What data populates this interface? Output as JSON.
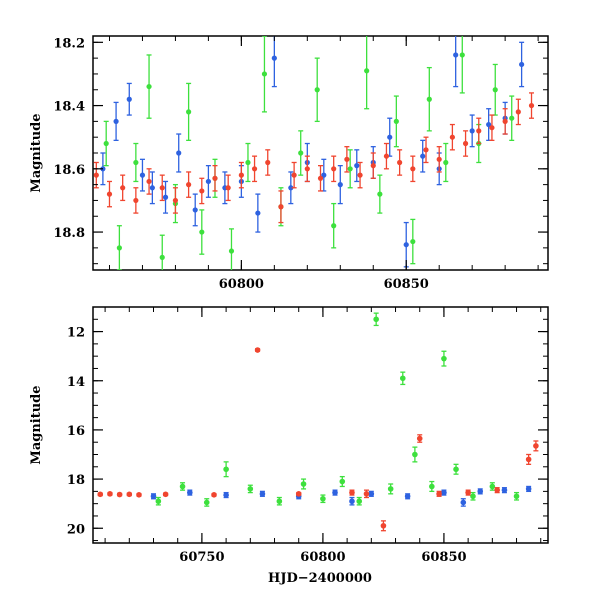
{
  "chart_data": [
    {
      "type": "scatter",
      "title": "",
      "xlabel": "",
      "ylabel": "Magnitude",
      "xlim": [
        60755,
        60893
      ],
      "ylim": [
        18.92,
        18.18
      ],
      "y_inverted": true,
      "x_ticks": [
        60800,
        60850
      ],
      "y_ticks": [
        18.2,
        18.4,
        18.6,
        18.8
      ],
      "grid": false,
      "legend": "none",
      "series": [
        {
          "color": "#2e62e0",
          "x": [
            60758,
            60762,
            60766,
            60770,
            60773,
            60777,
            60781,
            60786,
            60790,
            60795,
            60800,
            60805,
            60810,
            60815,
            60820,
            60825,
            60830,
            60835,
            60840,
            60845,
            60850,
            60855,
            60860,
            60865,
            60870,
            60875,
            60880,
            60885
          ],
          "y": [
            18.6,
            18.45,
            18.38,
            18.62,
            18.66,
            18.69,
            18.55,
            18.73,
            18.64,
            18.66,
            18.64,
            18.74,
            18.25,
            18.66,
            18.58,
            18.62,
            18.65,
            18.59,
            18.58,
            18.5,
            18.84,
            18.56,
            18.6,
            18.24,
            18.48,
            18.46,
            18.44,
            18.27
          ],
          "errors": [
            0.05,
            0.06,
            0.05,
            0.05,
            0.05,
            0.05,
            0.06,
            0.05,
            0.05,
            0.05,
            0.05,
            0.06,
            0.09,
            0.05,
            0.06,
            0.05,
            0.06,
            0.05,
            0.05,
            0.06,
            0.07,
            0.05,
            0.05,
            0.1,
            0.05,
            0.05,
            0.05,
            0.07
          ]
        },
        {
          "color": "#3de03d",
          "x": [
            60759,
            60763,
            60768,
            60772,
            60776,
            60780,
            60784,
            60788,
            60792,
            60797,
            60802,
            60807,
            60812,
            60818,
            60823,
            60828,
            60833,
            60838,
            60842,
            60847,
            60852,
            60857,
            60862,
            60867,
            60872,
            60877,
            60882
          ],
          "y": [
            18.52,
            18.85,
            18.58,
            18.34,
            18.88,
            18.71,
            18.42,
            18.8,
            18.63,
            18.86,
            18.58,
            18.3,
            18.72,
            18.55,
            18.35,
            18.78,
            18.6,
            18.29,
            18.68,
            18.45,
            18.83,
            18.38,
            18.58,
            18.24,
            18.52,
            18.35,
            18.44
          ],
          "errors": [
            0.07,
            0.07,
            0.06,
            0.1,
            0.07,
            0.06,
            0.09,
            0.07,
            0.06,
            0.07,
            0.06,
            0.12,
            0.06,
            0.07,
            0.1,
            0.07,
            0.06,
            0.12,
            0.06,
            0.08,
            0.07,
            0.1,
            0.06,
            0.12,
            0.06,
            0.08,
            0.07
          ]
        },
        {
          "color": "#f0452f",
          "x": [
            60756,
            60760,
            60764,
            60768,
            60772,
            60776,
            60780,
            60784,
            60788,
            60792,
            60796,
            60800,
            60804,
            60808,
            60812,
            60816,
            60820,
            60824,
            60828,
            60832,
            60836,
            60840,
            60844,
            60848,
            60852,
            60856,
            60860,
            60864,
            60868,
            60872,
            60876,
            60880,
            60884,
            60888
          ],
          "y": [
            18.62,
            18.68,
            18.66,
            18.7,
            18.64,
            18.66,
            18.7,
            18.65,
            18.67,
            18.63,
            18.66,
            18.62,
            18.6,
            18.58,
            18.72,
            18.62,
            18.6,
            18.63,
            18.6,
            18.57,
            18.62,
            18.59,
            18.56,
            18.58,
            18.6,
            18.54,
            18.57,
            18.5,
            18.52,
            18.48,
            18.47,
            18.45,
            18.42,
            18.4
          ],
          "errors": [
            0.04,
            0.04,
            0.04,
            0.04,
            0.04,
            0.04,
            0.04,
            0.04,
            0.04,
            0.04,
            0.04,
            0.04,
            0.04,
            0.04,
            0.05,
            0.04,
            0.04,
            0.04,
            0.04,
            0.04,
            0.04,
            0.04,
            0.04,
            0.04,
            0.04,
            0.04,
            0.04,
            0.04,
            0.04,
            0.04,
            0.04,
            0.04,
            0.04,
            0.04
          ]
        }
      ]
    },
    {
      "type": "scatter",
      "title": "",
      "xlabel": "HJD−2400000",
      "ylabel": "Magnitude",
      "xlim": [
        60705,
        60893
      ],
      "ylim": [
        20.6,
        11.0
      ],
      "y_inverted": true,
      "x_ticks": [
        60750,
        60800,
        60850
      ],
      "y_ticks": [
        12,
        14,
        16,
        18,
        20
      ],
      "grid": false,
      "legend": "none",
      "series": [
        {
          "color": "#2e62e0",
          "x": [
            60730,
            60745,
            60760,
            60775,
            60790,
            60805,
            60812,
            60820,
            60835,
            60850,
            60858,
            60865,
            60875,
            60885
          ],
          "y": [
            18.7,
            18.55,
            18.65,
            18.6,
            18.7,
            18.55,
            18.9,
            18.6,
            18.7,
            18.55,
            18.95,
            18.5,
            18.45,
            18.4
          ],
          "errors": [
            0.1,
            0.1,
            0.1,
            0.1,
            0.1,
            0.1,
            0.15,
            0.1,
            0.1,
            0.1,
            0.15,
            0.1,
            0.1,
            0.1
          ]
        },
        {
          "color": "#3de03d",
          "x": [
            60732,
            60742,
            60752,
            60760,
            60770,
            60782,
            60792,
            60800,
            60808,
            60815,
            60822,
            60828,
            60833,
            60838,
            60845,
            60850,
            60855,
            60862,
            60870,
            60880
          ],
          "y": [
            18.9,
            18.3,
            18.95,
            17.6,
            18.4,
            18.9,
            18.2,
            18.8,
            18.1,
            18.9,
            11.5,
            18.4,
            13.9,
            17.0,
            18.3,
            13.1,
            17.6,
            18.7,
            18.3,
            18.7
          ],
          "errors": [
            0.15,
            0.15,
            0.15,
            0.3,
            0.15,
            0.15,
            0.2,
            0.15,
            0.2,
            0.15,
            0.25,
            0.2,
            0.25,
            0.3,
            0.2,
            0.3,
            0.2,
            0.15,
            0.15,
            0.15
          ]
        },
        {
          "color": "#f0452f",
          "x": [
            60708,
            60712,
            60716,
            60720,
            60724,
            60735,
            60755,
            60773,
            60790,
            60812,
            60818,
            60825,
            60840,
            60848,
            60860,
            60872,
            60885,
            60888
          ],
          "y": [
            18.62,
            18.6,
            18.63,
            18.62,
            18.64,
            18.62,
            18.64,
            12.75,
            18.6,
            18.55,
            18.6,
            19.9,
            16.35,
            18.6,
            18.55,
            18.45,
            17.2,
            16.65
          ],
          "errors": [
            0.05,
            0.05,
            0.05,
            0.05,
            0.05,
            0.05,
            0.05,
            0.05,
            0.05,
            0.1,
            0.15,
            0.2,
            0.15,
            0.1,
            0.1,
            0.1,
            0.2,
            0.2
          ]
        }
      ]
    }
  ]
}
